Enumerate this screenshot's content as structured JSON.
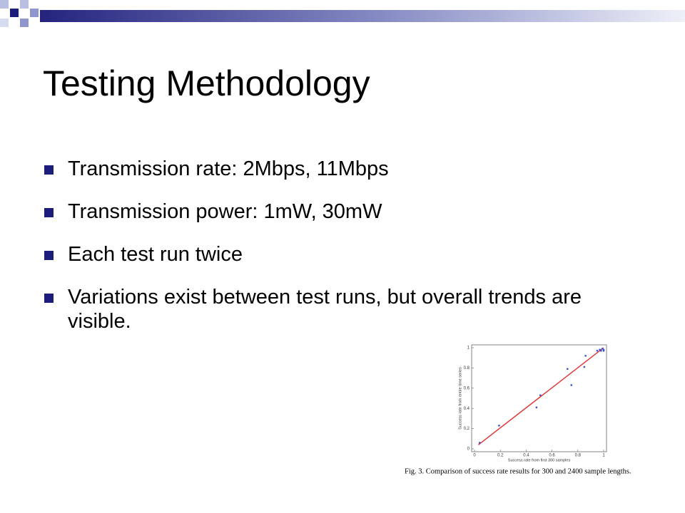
{
  "slide": {
    "title": "Testing Methodology",
    "bullets": [
      "Transmission rate: 2Mbps, 11Mbps",
      "Transmission power: 1mW, 30mW",
      "Each test run twice",
      "Variations exist between test runs, but overall trends are visible."
    ]
  },
  "chart_data": {
    "type": "scatter",
    "x_label": "Success rate from first 300 samples",
    "y_label": "Success rate from entire time series",
    "caption": "Fig. 3. Comparison of success rate results for 300 and 2400 sample lengths.",
    "x": [
      0.04,
      0.19,
      0.48,
      0.51,
      0.72,
      0.75,
      0.85,
      0.86,
      0.95,
      0.97,
      0.98,
      0.99,
      1,
      1
    ],
    "series": [
      {
        "color": "#3a4fd0",
        "values": [
          0.06,
          0.23,
          0.41,
          0.53,
          0.79,
          0.63,
          0.81,
          0.92,
          0.97,
          0.98,
          0.97,
          0.99,
          0.98,
          0.97
        ]
      }
    ],
    "trend_line": {
      "color": "#e03030",
      "x": [
        0.03,
        1
      ],
      "values": [
        0.04,
        1
      ]
    },
    "xlim": [
      0,
      1
    ],
    "ylim": [
      0,
      1
    ],
    "xticks": [
      0,
      0.2,
      0.4,
      0.6,
      0.8,
      1
    ],
    "yticks": [
      0,
      0.2,
      0.4,
      0.6,
      0.8,
      1
    ]
  }
}
